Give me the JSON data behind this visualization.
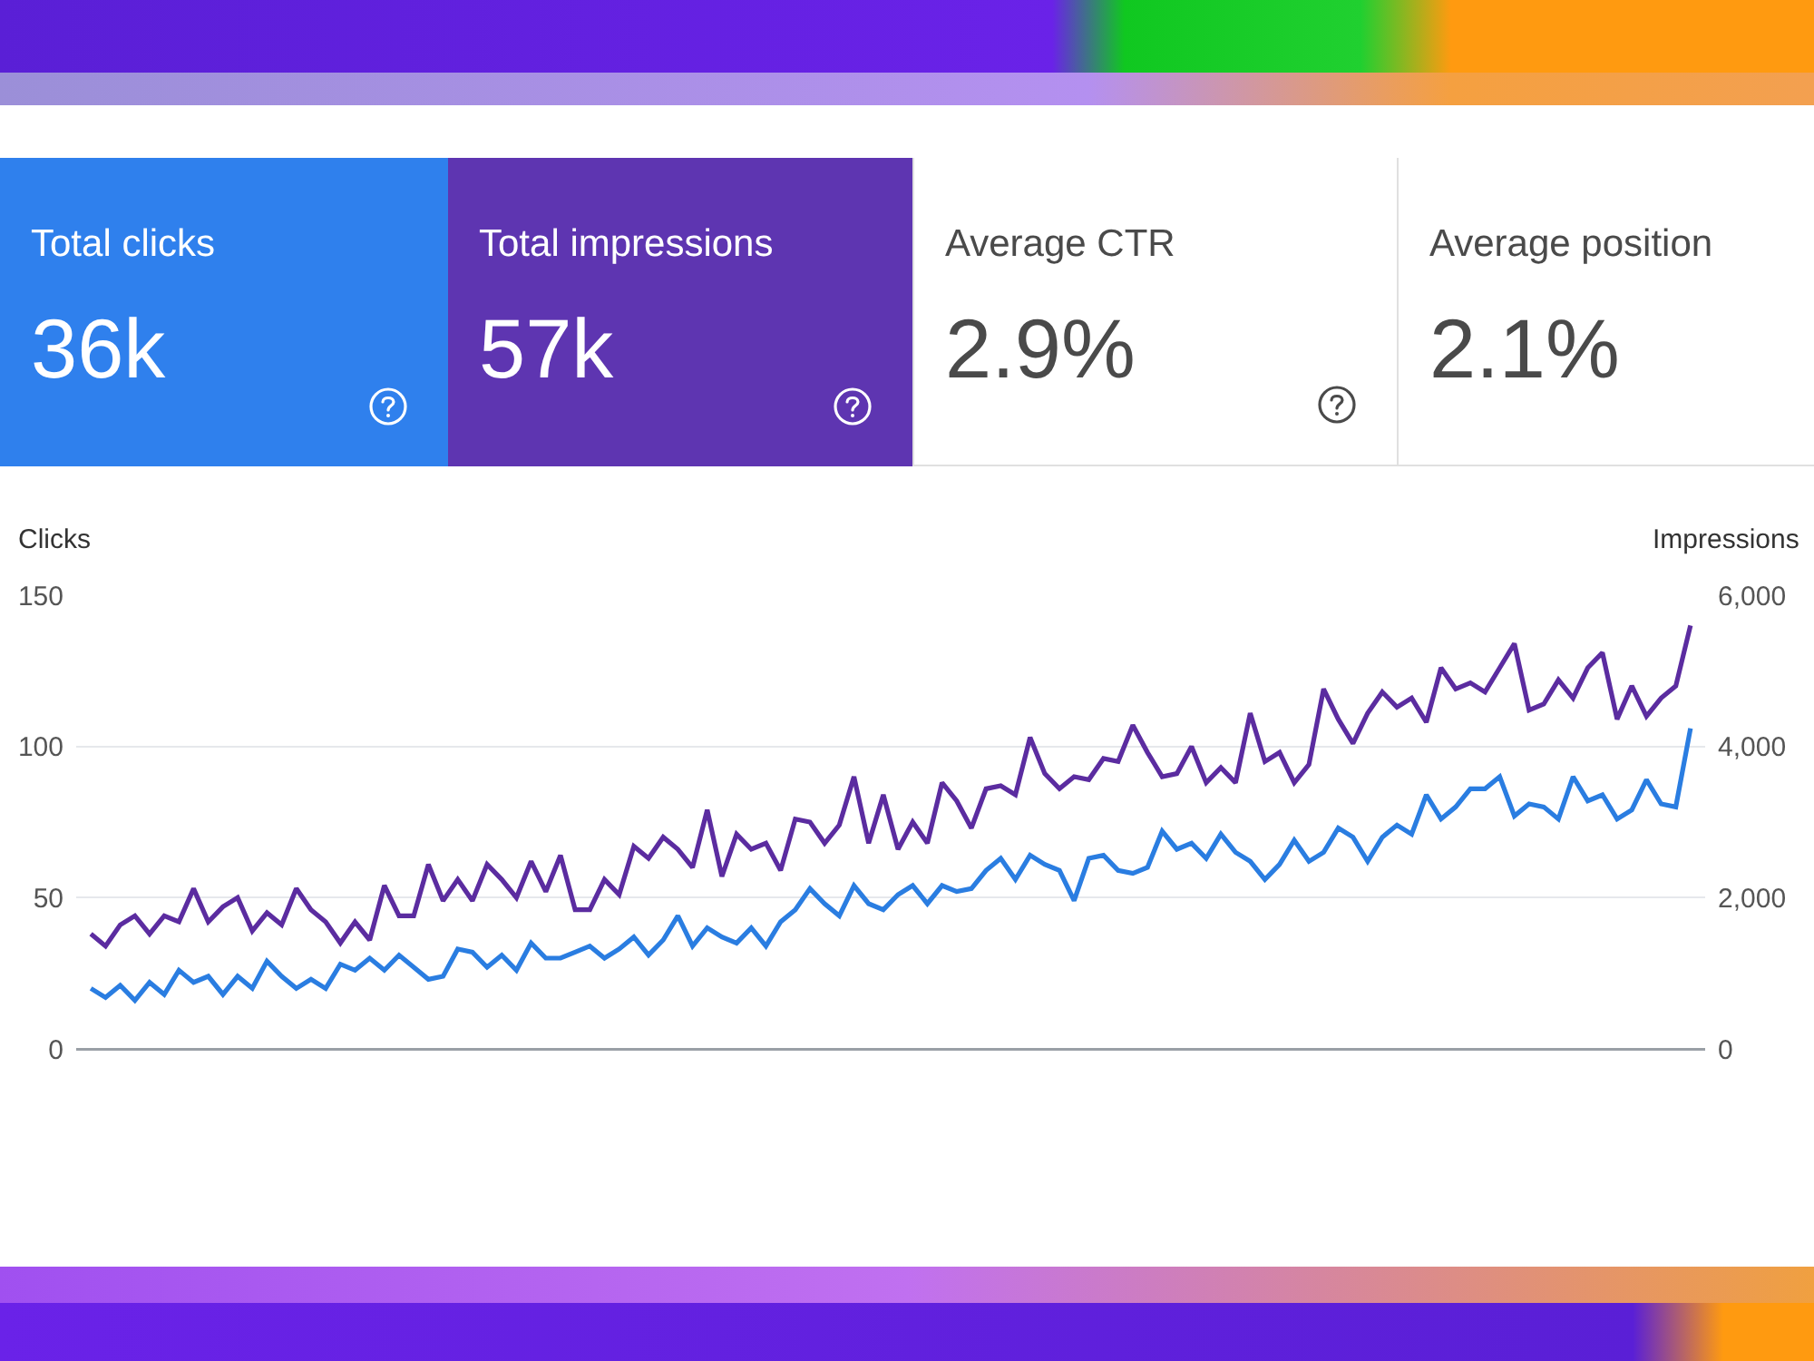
{
  "chart_data": [
    {
      "type": "other",
      "annotations": [
        "Total clicks",
        "36k",
        "Total impressions",
        "57k",
        "Average CTR",
        "2.9%",
        "Average position",
        "2.1%"
      ]
    },
    {
      "type": "line",
      "ylabel": "Clicks",
      "y2label": "Impressions",
      "categories": [
        null,
        null,
        null,
        null,
        null,
        null,
        null,
        null,
        null,
        null,
        null,
        null,
        null,
        null,
        null,
        null,
        null,
        null,
        null,
        null,
        null,
        null,
        null,
        null,
        null,
        null,
        null,
        null,
        null,
        null,
        null,
        null,
        null,
        null,
        null,
        null,
        null,
        null,
        null,
        null,
        null,
        null,
        null,
        null,
        null,
        null,
        null,
        null,
        null,
        null,
        null,
        null,
        null,
        null,
        null,
        null,
        null,
        null,
        null,
        null,
        null,
        null,
        null,
        null,
        null,
        null,
        null,
        null,
        null,
        null,
        null,
        null,
        null,
        null,
        null,
        null,
        null,
        null,
        null,
        null,
        null,
        null,
        null,
        null,
        null,
        null,
        null,
        null,
        null,
        null,
        null,
        null,
        null,
        null,
        null,
        null,
        null,
        null,
        null,
        null,
        null,
        null,
        null,
        null,
        null,
        null,
        null,
        null,
        null,
        null
      ],
      "series": [
        {
          "name": null,
          "color": "#5b2ca0",
          "axis": "y2",
          "values": [
            1520,
            1360,
            1640,
            1760,
            1520,
            1760,
            1680,
            2120,
            1680,
            1880,
            2000,
            1560,
            1800,
            1640,
            2120,
            1840,
            1680,
            1400,
            1680,
            1440,
            2160,
            1760,
            1760,
            2440,
            1960,
            2240,
            1960,
            2440,
            2240,
            2000,
            2480,
            2080,
            2560,
            1840,
            1840,
            2240,
            2040,
            2680,
            2520,
            2800,
            2640,
            2400,
            3160,
            2280,
            2840,
            2640,
            2720,
            2360,
            3040,
            3000,
            2720,
            2960,
            3600,
            2720,
            3360,
            2640,
            3000,
            2720,
            3520,
            3280,
            2920,
            3440,
            3480,
            3360,
            4120,
            3640,
            3440,
            3600,
            3560,
            3840,
            3800,
            4280,
            3920,
            3600,
            3640,
            4000,
            3520,
            3720,
            3520,
            4440,
            3800,
            3920,
            3520,
            3760,
            4760,
            4360,
            4040,
            4440,
            4720,
            4520,
            4640,
            4320,
            5040,
            4760,
            4840,
            4720,
            5040,
            5360,
            4480,
            4560,
            4880,
            4640,
            5040,
            5240,
            4360,
            4800,
            4400,
            4640,
            4800,
            5600
          ]
        },
        {
          "name": null,
          "color": "#2a7de1",
          "values": [
            20,
            17,
            21,
            16,
            22,
            18,
            26,
            22,
            24,
            18,
            24,
            20,
            29,
            24,
            20,
            23,
            20,
            28,
            26,
            30,
            26,
            31,
            27,
            23,
            24,
            33,
            32,
            27,
            31,
            26,
            35,
            30,
            30,
            32,
            34,
            30,
            33,
            37,
            31,
            36,
            44,
            34,
            40,
            37,
            35,
            40,
            34,
            42,
            46,
            53,
            48,
            44,
            54,
            48,
            46,
            51,
            54,
            48,
            54,
            52,
            53,
            59,
            63,
            56,
            64,
            61,
            59,
            49,
            63,
            64,
            59,
            58,
            60,
            72,
            66,
            68,
            63,
            71,
            65,
            62,
            56,
            61,
            69,
            62,
            65,
            73,
            70,
            62,
            70,
            74,
            71,
            84,
            76,
            80,
            86,
            86,
            90,
            77,
            81,
            80,
            76,
            90,
            82,
            84,
            76,
            79,
            89,
            81,
            80,
            106
          ]
        }
      ],
      "ylim": [
        0,
        150
      ],
      "yticks": [
        0,
        50,
        100,
        150
      ],
      "y2lim": [
        0,
        6000
      ],
      "y2ticks": [
        0,
        {
          "value": 2000,
          "label": "2,000"
        },
        {
          "value": 4000,
          "label": "4,000"
        },
        {
          "value": 6000,
          "label": "6,000"
        }
      ],
      "grid": "y",
      "marker": "none",
      "line_style": "solid",
      "tick_labels": "y"
    }
  ]
}
